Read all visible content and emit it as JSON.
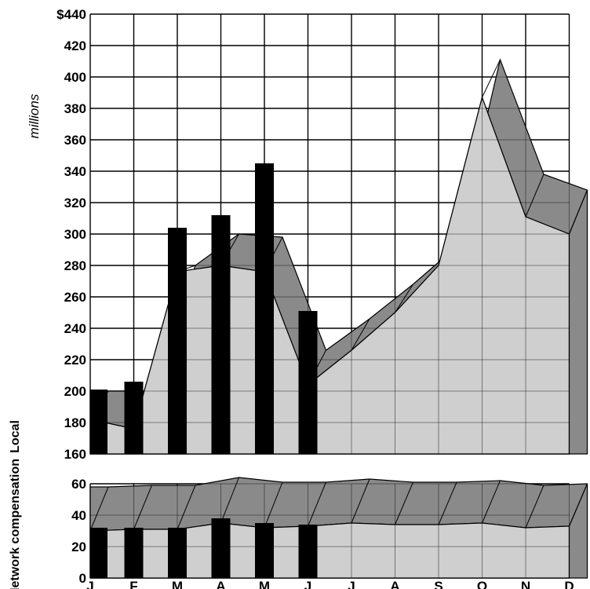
{
  "chart_data": [
    {
      "type": "area",
      "panel_label": "Local",
      "unit_label": "millions",
      "ylim": [
        160,
        440
      ],
      "y_ticks": [
        "$440",
        "420",
        "400",
        "380",
        "360",
        "340",
        "320",
        "300",
        "280",
        "260",
        "240",
        "220",
        "200",
        "180",
        "160"
      ],
      "months": [
        "J",
        "F",
        "M",
        "A",
        "M",
        "J",
        "J",
        "A",
        "S",
        "O",
        "N",
        "D"
      ],
      "series": [
        {
          "values": [
            182,
            176,
            276,
            280,
            276,
            204,
            226,
            250,
            280,
            387,
            311,
            300
          ]
        },
        {
          "values": [
            200,
            200,
            280,
            300,
            298,
            226,
            246,
            268,
            292,
            411,
            338,
            328
          ]
        },
        {
          "values": [
            201,
            206,
            304,
            312,
            345,
            251
          ]
        }
      ],
      "grid": true,
      "colors": {
        "front": "#cfcfcf",
        "back": "#8a8a8a",
        "bars": "#000000"
      }
    },
    {
      "type": "area",
      "panel_label": "Network compensation",
      "ylim": [
        0,
        60
      ],
      "y_ticks": [
        "60",
        "40",
        "20",
        "0"
      ],
      "months": [
        "J",
        "F",
        "M",
        "A",
        "M",
        "J",
        "J",
        "A",
        "S",
        "O",
        "N",
        "D"
      ],
      "series": [
        {
          "values": [
            30,
            31,
            31,
            35,
            32,
            33,
            35,
            34,
            34,
            35,
            32,
            33
          ]
        },
        {
          "values": [
            58,
            59,
            59,
            64,
            61,
            61,
            63,
            61,
            61,
            62,
            59,
            60
          ]
        },
        {
          "values": [
            32,
            32,
            32,
            38,
            35,
            34
          ]
        }
      ],
      "grid": true,
      "colors": {
        "front": "#cfcfcf",
        "back": "#8a8a8a",
        "bars": "#000000"
      }
    }
  ]
}
